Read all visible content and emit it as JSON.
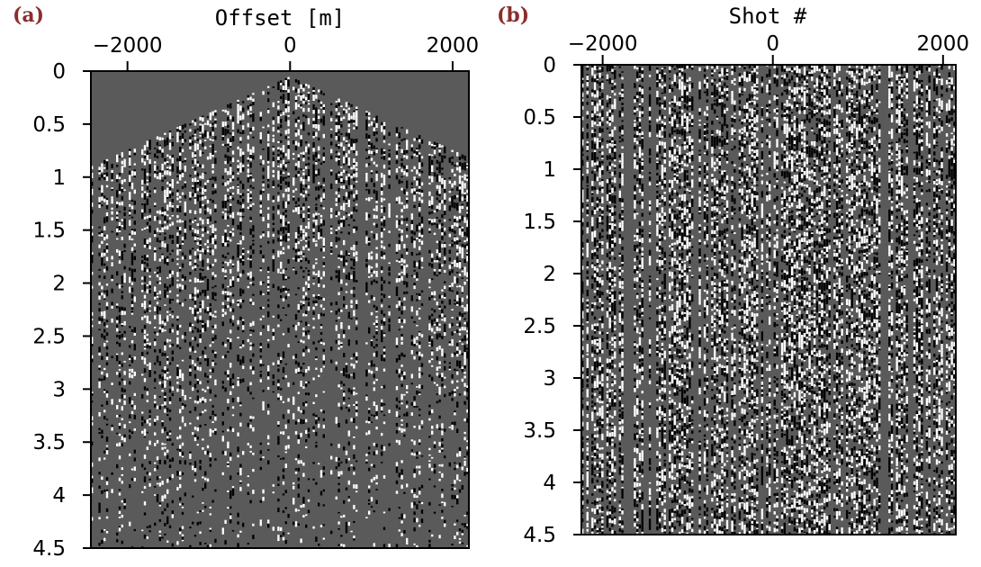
{
  "panels": [
    {
      "label": "(a)",
      "chart_data": {
        "type": "heatmap",
        "description_kind": "seismic-gather",
        "xlabel": "Offset [m]",
        "ylabel": "",
        "xlim": [
          -2450,
          2200
        ],
        "ylim": [
          4.5,
          0
        ],
        "xticks": [
          -2000,
          0,
          2000
        ],
        "xtick_labels": [
          "−2000",
          "0",
          "2000"
        ],
        "yticks": [
          0,
          0.5,
          1,
          1.5,
          2,
          2.5,
          3,
          3.5,
          4,
          4.5
        ],
        "ytick_labels": [
          "0",
          "0.5",
          "1",
          "1.5",
          "2",
          "2.5",
          "3",
          "3.5",
          "4",
          "4.5"
        ],
        "first_break_apex_time": 0.05,
        "first_break_edge_time": 0.9,
        "background_color": "#5a5a5a"
      }
    },
    {
      "label": "(b)",
      "chart_data": {
        "type": "heatmap",
        "description_kind": "seismic-gather",
        "xlabel": "Shot #",
        "ylabel": "",
        "xlim": [
          -2250,
          2150
        ],
        "ylim": [
          4.5,
          0
        ],
        "xticks": [
          -2000,
          0,
          2000
        ],
        "xtick_labels": [
          "−2000",
          "0",
          "2000"
        ],
        "yticks": [
          0,
          0.5,
          1,
          1.5,
          2,
          2.5,
          3,
          3.5,
          4,
          4.5
        ],
        "ytick_labels": [
          "0",
          "0.5",
          "1",
          "1.5",
          "2",
          "2.5",
          "3",
          "3.5",
          "4",
          "4.5"
        ],
        "background_color": "#5a5a5a"
      }
    }
  ]
}
